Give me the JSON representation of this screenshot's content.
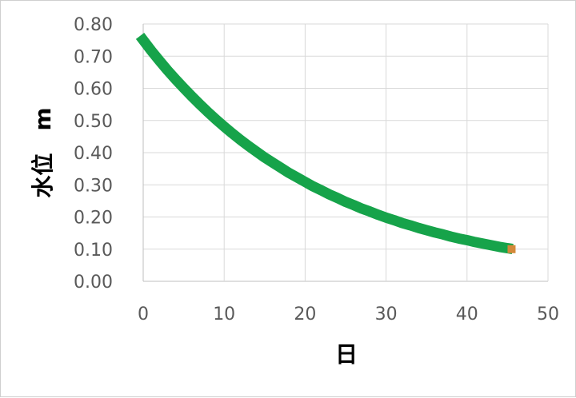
{
  "chart_data": {
    "type": "scatter",
    "xlabel": "日",
    "ylabel": "水位　m",
    "xlim": [
      0,
      50
    ],
    "ylim": [
      0,
      0.8
    ],
    "xticks": [
      "0",
      "10",
      "20",
      "30",
      "40",
      "50"
    ],
    "yticks": [
      "0.00",
      "0.10",
      "0.20",
      "0.30",
      "0.40",
      "0.50",
      "0.60",
      "0.70",
      "0.80"
    ],
    "grid": true,
    "legend": "none",
    "series": [
      {
        "color": "#16a34a",
        "style": "thick-line",
        "x": [
          0,
          1,
          2,
          3,
          4,
          5,
          6,
          7,
          8,
          9,
          10,
          11,
          12,
          13,
          14,
          15,
          16,
          17,
          18,
          19,
          20,
          21,
          22,
          23,
          24,
          25,
          26,
          27,
          28,
          29,
          30,
          31,
          32,
          33,
          34,
          35,
          36,
          37,
          38,
          39,
          40,
          41,
          42,
          43,
          44,
          45
        ],
        "y": [
          0.75,
          0.717,
          0.686,
          0.656,
          0.628,
          0.601,
          0.575,
          0.55,
          0.526,
          0.503,
          0.481,
          0.46,
          0.44,
          0.421,
          0.403,
          0.385,
          0.369,
          0.353,
          0.337,
          0.323,
          0.309,
          0.295,
          0.283,
          0.27,
          0.259,
          0.247,
          0.237,
          0.226,
          0.217,
          0.207,
          0.198,
          0.19,
          0.181,
          0.174,
          0.166,
          0.159,
          0.152,
          0.146,
          0.139,
          0.133,
          0.128,
          0.122,
          0.117,
          0.112,
          0.107,
          0.103
        ]
      },
      {
        "color": "#d4893a",
        "style": "square-marker",
        "x": [
          45.5
        ],
        "y": [
          0.1
        ]
      }
    ]
  }
}
